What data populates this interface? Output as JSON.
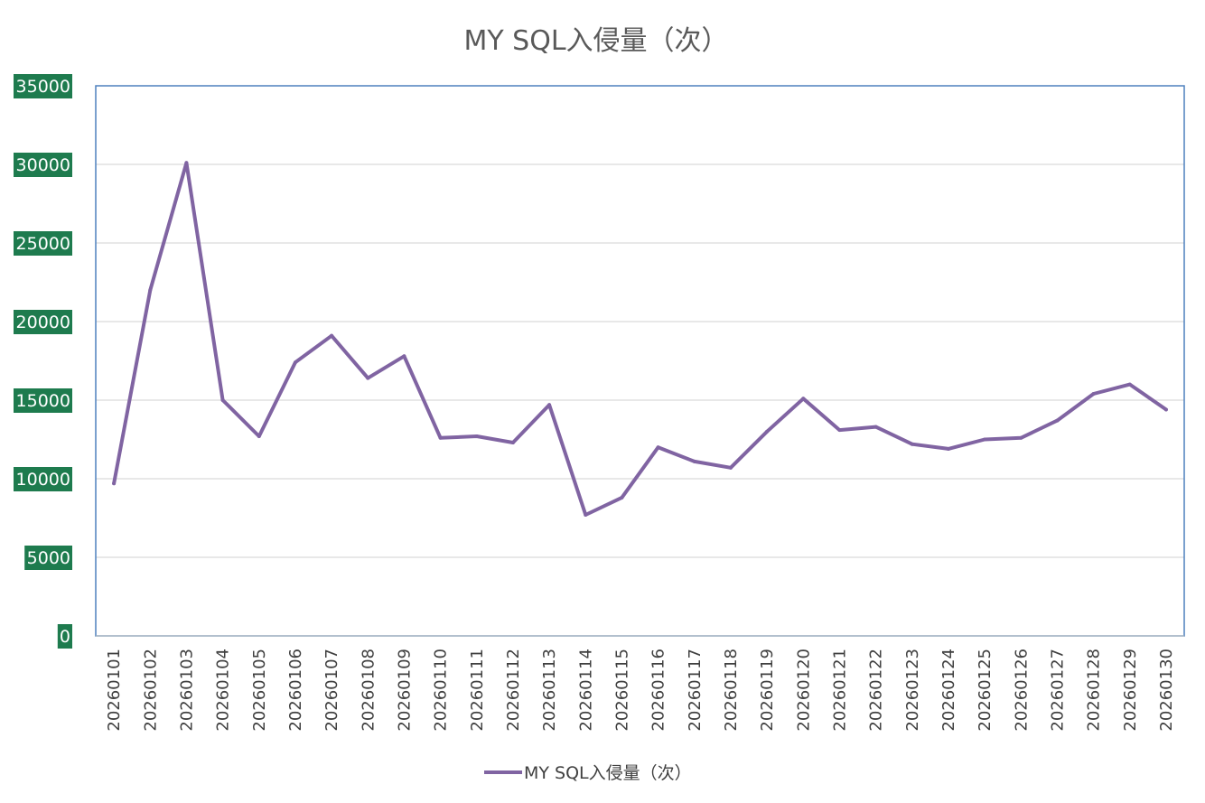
{
  "chart_data": {
    "type": "line",
    "title": "MY SQL入侵量（次）",
    "xlabel": "",
    "ylabel": "",
    "ylim": [
      0,
      35000
    ],
    "yticks": [
      0,
      5000,
      10000,
      15000,
      20000,
      25000,
      30000,
      35000
    ],
    "grid": true,
    "legend_position": "bottom",
    "categories": [
      "20260101",
      "20260102",
      "20260103",
      "20260104",
      "20260105",
      "20260106",
      "20260107",
      "20260108",
      "20260109",
      "20260110",
      "20260111",
      "20260112",
      "20260113",
      "20260114",
      "20260115",
      "20260116",
      "20260117",
      "20260118",
      "20260119",
      "20260120",
      "20260121",
      "20260122",
      "20260123",
      "20260124",
      "20260125",
      "20260126",
      "20260127",
      "20260128",
      "20260129",
      "20260130"
    ],
    "series": [
      {
        "name": "MY SQL入侵量（次）",
        "color": "#8064a2",
        "values": [
          9700,
          22000,
          30100,
          15000,
          12700,
          17400,
          19100,
          16400,
          17800,
          12600,
          12700,
          12300,
          14700,
          7700,
          8800,
          12000,
          11100,
          10700,
          13000,
          15100,
          13100,
          13300,
          12200,
          11900,
          12500,
          12600,
          13700,
          15400,
          16000,
          14400
        ]
      }
    ]
  },
  "colors": {
    "line": "#8064a2",
    "ytick_label_bg": "#1e7b4e",
    "plot_border": "#4f81bd",
    "gridline": "#d9d9d9"
  }
}
